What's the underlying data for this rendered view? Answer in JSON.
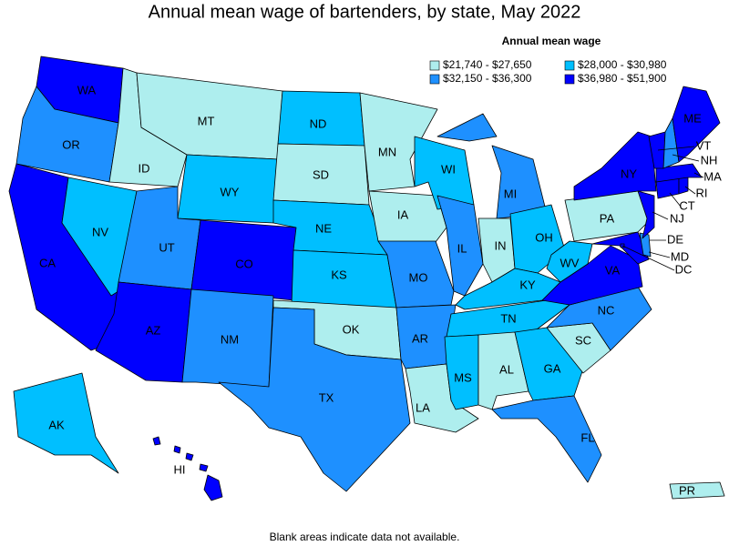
{
  "title": "Annual mean wage of bartenders, by state, May 2022",
  "legend": {
    "title": "Annual mean wage",
    "bins": [
      {
        "label": "$21,740 - $27,650",
        "color": "#aeeeee"
      },
      {
        "label": "$28,000 - $30,980",
        "color": "#00bfff"
      },
      {
        "label": "$32,150 - $36,300",
        "color": "#1e90ff"
      },
      {
        "label": "$36,980 - $51,900",
        "color": "#0000ff"
      }
    ]
  },
  "states": [
    {
      "label": "WA",
      "color": "#0000ff"
    },
    {
      "label": "OR",
      "color": "#1e90ff"
    },
    {
      "label": "CA",
      "color": "#0000ff"
    },
    {
      "label": "NV",
      "color": "#00bfff"
    },
    {
      "label": "ID",
      "color": "#aeeeee"
    },
    {
      "label": "MT",
      "color": "#aeeeee"
    },
    {
      "label": "WY",
      "color": "#00bfff"
    },
    {
      "label": "UT",
      "color": "#1e90ff"
    },
    {
      "label": "CO",
      "color": "#0000ff"
    },
    {
      "label": "AZ",
      "color": "#0000ff"
    },
    {
      "label": "NM",
      "color": "#1e90ff"
    },
    {
      "label": "ND",
      "color": "#00bfff"
    },
    {
      "label": "SD",
      "color": "#aeeeee"
    },
    {
      "label": "NE",
      "color": "#00bfff"
    },
    {
      "label": "KS",
      "color": "#00bfff"
    },
    {
      "label": "OK",
      "color": "#aeeeee"
    },
    {
      "label": "TX",
      "color": "#1e90ff"
    },
    {
      "label": "MN",
      "color": "#aeeeee"
    },
    {
      "label": "IA",
      "color": "#aeeeee"
    },
    {
      "label": "MO",
      "color": "#1e90ff"
    },
    {
      "label": "AR",
      "color": "#1e90ff"
    },
    {
      "label": "LA",
      "color": "#aeeeee"
    },
    {
      "label": "WI",
      "color": "#00bfff"
    },
    {
      "label": "IL",
      "color": "#1e90ff"
    },
    {
      "label": "MI",
      "color": "#1e90ff"
    },
    {
      "label": "IN",
      "color": "#aeeeee"
    },
    {
      "label": "OH",
      "color": "#00bfff"
    },
    {
      "label": "KY",
      "color": "#00bfff"
    },
    {
      "label": "TN",
      "color": "#00bfff"
    },
    {
      "label": "MS",
      "color": "#00bfff"
    },
    {
      "label": "AL",
      "color": "#aeeeee"
    },
    {
      "label": "GA",
      "color": "#00bfff"
    },
    {
      "label": "FL",
      "color": "#1e90ff"
    },
    {
      "label": "SC",
      "color": "#aeeeee"
    },
    {
      "label": "NC",
      "color": "#1e90ff"
    },
    {
      "label": "VA",
      "color": "#0000ff"
    },
    {
      "label": "WV",
      "color": "#00bfff"
    },
    {
      "label": "PA",
      "color": "#aeeeee"
    },
    {
      "label": "NY",
      "color": "#0000ff"
    },
    {
      "label": "MD",
      "color": "#0000ff"
    },
    {
      "label": "DE",
      "color": "#1e90ff"
    },
    {
      "label": "NJ",
      "color": "#0000ff"
    },
    {
      "label": "CT",
      "color": "#0000ff"
    },
    {
      "label": "RI",
      "color": "#0000ff"
    },
    {
      "label": "MA",
      "color": "#0000ff"
    },
    {
      "label": "VT",
      "color": "#0000ff"
    },
    {
      "label": "NH",
      "color": "#1e90ff"
    },
    {
      "label": "ME",
      "color": "#0000ff"
    },
    {
      "label": "DC",
      "color": "#0000ff"
    },
    {
      "label": "AK",
      "color": "#00bfff"
    },
    {
      "label": "HI",
      "color": "#0000ff"
    },
    {
      "label": "PR",
      "color": "#aeeeee"
    }
  ],
  "footnote": "Blank areas indicate data not available."
}
